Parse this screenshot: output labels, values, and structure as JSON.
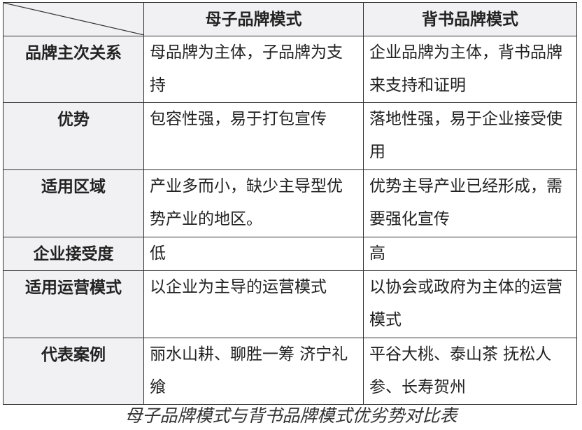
{
  "table": {
    "headers": [
      "",
      "母子品牌模式",
      "背书品牌模式"
    ],
    "rows": [
      {
        "label": "品牌主次关系",
        "a": "母品牌为主体，子品牌为支持",
        "b": "企业品牌为主体，背书品牌来支持和证明"
      },
      {
        "label": "优势",
        "a": "包容性强，易于打包宣传",
        "b": "落地性强，易于企业接受使用"
      },
      {
        "label": "适用区域",
        "a": "产业多而小，缺少主导型优势产业的地区。",
        "b": "优势主导产业已经形成，需要强化宣传"
      },
      {
        "label": "企业接受度",
        "a": "低",
        "b": "高"
      },
      {
        "label": "适用运营模式",
        "a": "以企业为主导的运营模式",
        "b": "以协会或政府为主体的运营模式"
      },
      {
        "label": "代表案例",
        "a": "丽水山耕、聊胜一筹 济宁礼飨",
        "b": "平谷大桃、泰山茶 抚松人参、长寿贺州"
      }
    ]
  },
  "caption": "母子品牌模式与背书品牌模式优劣势对比表"
}
